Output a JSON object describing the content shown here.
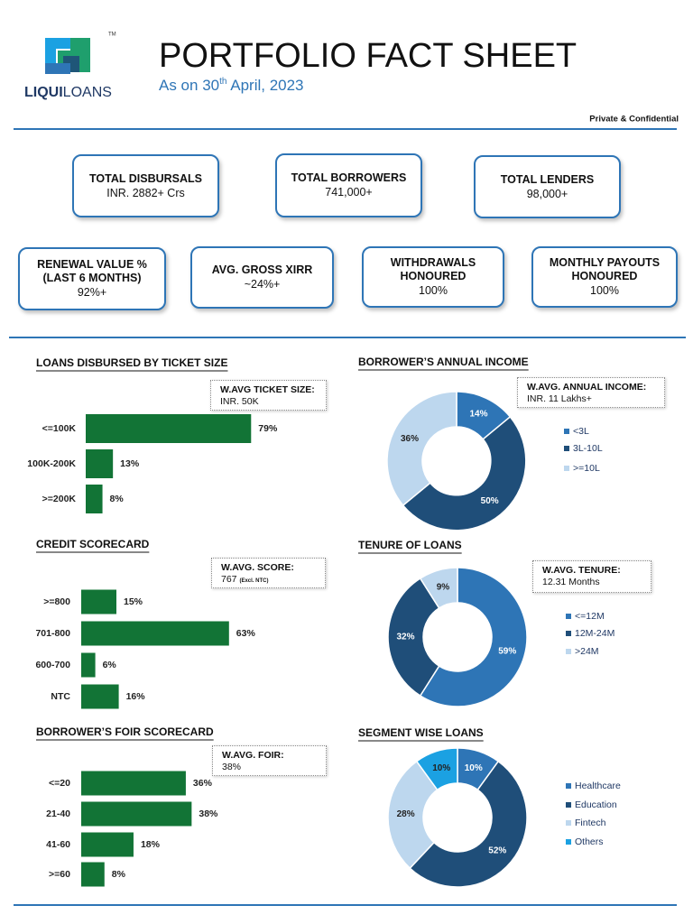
{
  "header": {
    "brand": [
      "LIQUI",
      "LOANS"
    ],
    "trademark": "TM",
    "title": "PORTFOLIO FACT SHEET",
    "subtitle": [
      "As on 30",
      "th",
      " April, 2023"
    ],
    "confidential": "Private & Confidential"
  },
  "kpis": [
    {
      "label": "TOTAL DISBURSALS",
      "value": "INR. 2882+ Crs"
    },
    {
      "label": "TOTAL BORROWERS",
      "value": "741,000+"
    },
    {
      "label": "TOTAL LENDERS",
      "value": "98,000+"
    },
    {
      "label": "RENEWAL VALUE % (LAST 6 MONTHS)",
      "value": "92%+"
    },
    {
      "label": "AVG. GROSS XIRR",
      "value": "~24%+"
    },
    {
      "label": "WITHDRAWALS HONOURED",
      "value": "100%"
    },
    {
      "label": "MONTHLY PAYOUTS HONOURED",
      "value": "100%"
    }
  ],
  "chart_data": [
    {
      "type": "bar",
      "title": "LOANS DISBURSED BY TICKET SIZE",
      "note_title": "W.AVG TICKET SIZE:",
      "note_value": "INR. 50K",
      "categories": [
        "<=100K",
        "100K-200K",
        ">=200K"
      ],
      "values": [
        79,
        13,
        8
      ],
      "value_labels": [
        "79%",
        "13%",
        "8%"
      ],
      "color": "#127436"
    },
    {
      "type": "donut",
      "title": "BORROWER’S ANNUAL INCOME",
      "note_title": "W.AVG. ANNUAL INCOME:",
      "note_value": "INR. 11 Lakhs+",
      "categories": [
        "<3L",
        "3L-10L",
        ">=10L"
      ],
      "values": [
        14,
        50,
        36
      ],
      "value_labels": [
        "14%",
        "50%",
        "36%"
      ],
      "colors": [
        "#2e75b6",
        "#1f4e79",
        "#bdd7ee"
      ]
    },
    {
      "type": "bar",
      "title": "CREDIT SCORECARD",
      "note_title": "W.AVG. SCORE:",
      "note_value": "767",
      "note_detail": "(Excl. NTC)",
      "categories": [
        ">=800",
        "701-800",
        "600-700",
        "NTC"
      ],
      "values": [
        15,
        63,
        6,
        16
      ],
      "value_labels": [
        "15%",
        "63%",
        "6%",
        "16%"
      ],
      "color": "#127436"
    },
    {
      "type": "donut",
      "title": "TENURE OF LOANS",
      "note_title": "W.AVG. TENURE:",
      "note_value": "12.31 Months",
      "categories": [
        "<=12M",
        "12M-24M",
        ">24M"
      ],
      "values": [
        59,
        32,
        9
      ],
      "value_labels": [
        "59%",
        "32%",
        "9%"
      ],
      "colors": [
        "#2e75b6",
        "#1f4e79",
        "#bdd7ee"
      ]
    },
    {
      "type": "bar",
      "title": "BORROWER’S FOIR SCORECARD",
      "note_title": "W.AVG. FOIR:",
      "note_value": "38%",
      "categories": [
        "<=20",
        "21-40",
        "41-60",
        ">=60"
      ],
      "values": [
        36,
        38,
        18,
        8
      ],
      "value_labels": [
        "36%",
        "38%",
        "18%",
        "8%"
      ],
      "color": "#127436"
    },
    {
      "type": "donut",
      "title": "SEGMENT WISE LOANS",
      "categories": [
        "Healthcare",
        "Education",
        "Fintech",
        "Others"
      ],
      "values": [
        10,
        52,
        28,
        10
      ],
      "value_labels": [
        "10%",
        "52%",
        "28%",
        "10%"
      ],
      "colors": [
        "#2e75b6",
        "#1f4e79",
        "#bdd7ee",
        "#1ba1e2"
      ]
    }
  ]
}
